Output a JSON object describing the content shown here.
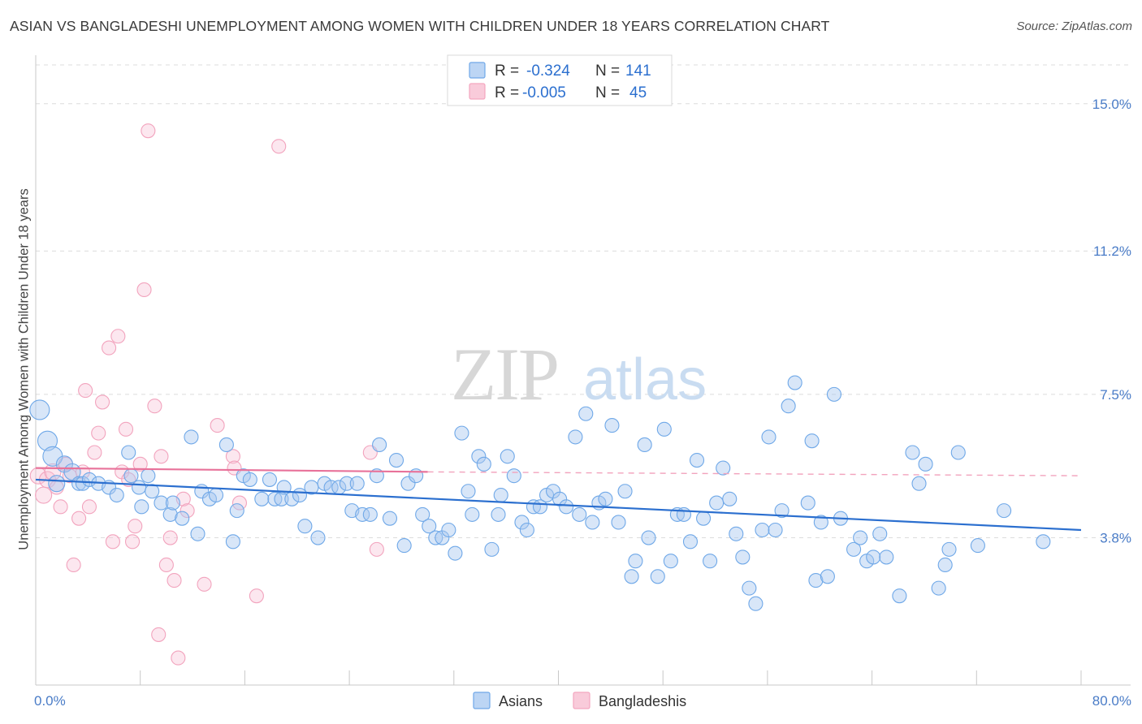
{
  "chart_data": {
    "type": "scatter",
    "title": "ASIAN VS BANGLADESHI UNEMPLOYMENT AMONG WOMEN WITH CHILDREN UNDER 18 YEARS CORRELATION CHART",
    "source": "Source: ZipAtlas.com",
    "ylabel": "Unemployment Among Women with Children Under 18 years",
    "xlabel": "",
    "xlim": [
      0,
      80
    ],
    "ylim": [
      0,
      16
    ],
    "x_tick_labels": [
      "0.0%",
      "80.0%"
    ],
    "y_ticks": [
      3.8,
      7.5,
      11.2,
      15.0
    ],
    "y_tick_labels": [
      "3.8%",
      "7.5%",
      "11.2%",
      "15.0%"
    ],
    "grid": "horizontal dashed",
    "watermark": "ZIPatlas",
    "legend_position": "top-center",
    "colors": {
      "asians": "#6fa8e8",
      "asians_line": "#2b6fcf",
      "bangladeshis": "#f4a6bf",
      "bangladeshis_line": "#e8729a",
      "accent_text": "#2b6fcf"
    },
    "stats": [
      {
        "r_label": "R =",
        "r_value": "-0.324",
        "n_label": "N =",
        "n_value": "141"
      },
      {
        "r_label": "R =",
        "r_value": "-0.005",
        "n_label": "N =",
        "n_value": "45"
      }
    ],
    "series": [
      {
        "name": "Asians",
        "trend": {
          "x": [
            0,
            80
          ],
          "y": [
            5.3,
            4.0
          ]
        },
        "points": [
          [
            0.3,
            7.1
          ],
          [
            0.9,
            6.3
          ],
          [
            1.3,
            5.9
          ],
          [
            1.6,
            5.2
          ],
          [
            2.2,
            5.7
          ],
          [
            2.8,
            5.5
          ],
          [
            3.3,
            5.2
          ],
          [
            3.6,
            5.2
          ],
          [
            4.1,
            5.3
          ],
          [
            4.8,
            5.2
          ],
          [
            5.6,
            5.1
          ],
          [
            6.2,
            4.9
          ],
          [
            7.1,
            6.0
          ],
          [
            7.3,
            5.4
          ],
          [
            7.9,
            5.1
          ],
          [
            8.6,
            5.4
          ],
          [
            8.1,
            4.6
          ],
          [
            8.9,
            5.0
          ],
          [
            9.6,
            4.7
          ],
          [
            10.3,
            4.4
          ],
          [
            10.5,
            4.7
          ],
          [
            11.2,
            4.3
          ],
          [
            11.9,
            6.4
          ],
          [
            12.4,
            3.9
          ],
          [
            12.7,
            5.0
          ],
          [
            13.3,
            4.8
          ],
          [
            13.8,
            4.9
          ],
          [
            14.6,
            6.2
          ],
          [
            15.1,
            3.7
          ],
          [
            15.4,
            4.5
          ],
          [
            15.9,
            5.4
          ],
          [
            16.4,
            5.3
          ],
          [
            17.3,
            4.8
          ],
          [
            17.9,
            5.3
          ],
          [
            18.3,
            4.8
          ],
          [
            18.8,
            4.8
          ],
          [
            19.0,
            5.1
          ],
          [
            19.6,
            4.8
          ],
          [
            20.2,
            4.9
          ],
          [
            20.6,
            4.1
          ],
          [
            21.1,
            5.1
          ],
          [
            21.6,
            3.8
          ],
          [
            22.1,
            5.2
          ],
          [
            22.6,
            5.1
          ],
          [
            23.2,
            5.1
          ],
          [
            23.8,
            5.2
          ],
          [
            24.2,
            4.5
          ],
          [
            24.6,
            5.2
          ],
          [
            25.0,
            4.4
          ],
          [
            25.6,
            4.4
          ],
          [
            26.1,
            5.4
          ],
          [
            26.3,
            6.2
          ],
          [
            27.1,
            4.3
          ],
          [
            27.6,
            5.8
          ],
          [
            28.2,
            3.6
          ],
          [
            28.5,
            5.2
          ],
          [
            29.1,
            5.4
          ],
          [
            29.6,
            4.4
          ],
          [
            30.1,
            4.1
          ],
          [
            30.6,
            3.8
          ],
          [
            31.1,
            3.8
          ],
          [
            31.6,
            4.0
          ],
          [
            32.1,
            3.4
          ],
          [
            32.6,
            6.5
          ],
          [
            33.1,
            5.0
          ],
          [
            33.4,
            4.4
          ],
          [
            33.9,
            5.9
          ],
          [
            34.3,
            5.7
          ],
          [
            34.9,
            3.5
          ],
          [
            35.4,
            4.4
          ],
          [
            35.6,
            4.9
          ],
          [
            36.1,
            5.9
          ],
          [
            36.6,
            5.4
          ],
          [
            37.2,
            4.2
          ],
          [
            37.6,
            4.0
          ],
          [
            38.1,
            4.6
          ],
          [
            38.6,
            4.6
          ],
          [
            39.1,
            4.9
          ],
          [
            39.6,
            5.0
          ],
          [
            40.1,
            4.8
          ],
          [
            40.6,
            4.6
          ],
          [
            41.3,
            6.4
          ],
          [
            41.6,
            4.4
          ],
          [
            42.1,
            7.0
          ],
          [
            42.6,
            4.2
          ],
          [
            43.1,
            4.7
          ],
          [
            43.6,
            4.8
          ],
          [
            44.1,
            6.7
          ],
          [
            44.6,
            4.2
          ],
          [
            45.1,
            5.0
          ],
          [
            45.6,
            2.8
          ],
          [
            45.9,
            3.2
          ],
          [
            46.6,
            6.2
          ],
          [
            46.9,
            3.8
          ],
          [
            47.6,
            2.8
          ],
          [
            48.1,
            6.6
          ],
          [
            48.6,
            3.2
          ],
          [
            49.1,
            4.4
          ],
          [
            49.6,
            4.4
          ],
          [
            50.1,
            3.7
          ],
          [
            50.6,
            5.8
          ],
          [
            51.1,
            4.3
          ],
          [
            51.6,
            3.2
          ],
          [
            52.1,
            4.7
          ],
          [
            52.6,
            5.6
          ],
          [
            53.1,
            4.8
          ],
          [
            53.6,
            3.9
          ],
          [
            54.1,
            3.3
          ],
          [
            54.6,
            2.5
          ],
          [
            55.1,
            2.1
          ],
          [
            55.6,
            4.0
          ],
          [
            56.1,
            6.4
          ],
          [
            56.6,
            4.0
          ],
          [
            57.1,
            4.5
          ],
          [
            57.6,
            7.2
          ],
          [
            58.1,
            7.8
          ],
          [
            59.1,
            4.7
          ],
          [
            59.4,
            6.3
          ],
          [
            59.7,
            2.7
          ],
          [
            60.1,
            4.2
          ],
          [
            60.6,
            2.8
          ],
          [
            61.1,
            7.5
          ],
          [
            61.6,
            4.3
          ],
          [
            62.6,
            3.5
          ],
          [
            63.1,
            3.8
          ],
          [
            63.6,
            3.2
          ],
          [
            64.1,
            3.3
          ],
          [
            64.6,
            3.9
          ],
          [
            65.1,
            3.3
          ],
          [
            66.1,
            2.3
          ],
          [
            67.1,
            6.0
          ],
          [
            67.6,
            5.2
          ],
          [
            68.1,
            5.7
          ],
          [
            69.1,
            2.5
          ],
          [
            69.6,
            3.1
          ],
          [
            69.9,
            3.5
          ],
          [
            70.6,
            6.0
          ],
          [
            72.1,
            3.6
          ],
          [
            74.1,
            4.5
          ],
          [
            77.1,
            3.7
          ]
        ]
      },
      {
        "name": "Bangladeshis",
        "trend": {
          "x": [
            0,
            30
          ],
          "y": [
            5.6,
            5.5
          ]
        },
        "trend_dashed": {
          "x": [
            30,
            80
          ],
          "y": [
            5.5,
            5.4
          ]
        },
        "points": [
          [
            0.2,
            5.4
          ],
          [
            0.6,
            4.9
          ],
          [
            0.9,
            5.3
          ],
          [
            1.3,
            5.5
          ],
          [
            1.6,
            5.1
          ],
          [
            1.9,
            4.6
          ],
          [
            2.3,
            5.7
          ],
          [
            2.6,
            5.4
          ],
          [
            2.9,
            3.1
          ],
          [
            3.3,
            4.3
          ],
          [
            3.6,
            5.5
          ],
          [
            3.8,
            7.6
          ],
          [
            4.1,
            4.6
          ],
          [
            4.5,
            6.0
          ],
          [
            4.8,
            6.5
          ],
          [
            5.1,
            7.3
          ],
          [
            5.6,
            8.7
          ],
          [
            5.9,
            3.7
          ],
          [
            6.3,
            9.0
          ],
          [
            6.6,
            5.5
          ],
          [
            6.9,
            6.6
          ],
          [
            7.1,
            5.3
          ],
          [
            7.4,
            3.7
          ],
          [
            7.6,
            4.1
          ],
          [
            8.0,
            5.7
          ],
          [
            8.3,
            10.2
          ],
          [
            8.6,
            14.3
          ],
          [
            9.1,
            7.2
          ],
          [
            9.4,
            1.3
          ],
          [
            9.6,
            5.9
          ],
          [
            10.0,
            3.1
          ],
          [
            10.3,
            3.8
          ],
          [
            10.6,
            2.7
          ],
          [
            10.9,
            0.7
          ],
          [
            11.3,
            4.8
          ],
          [
            11.6,
            4.5
          ],
          [
            12.9,
            2.6
          ],
          [
            13.9,
            6.7
          ],
          [
            15.1,
            5.9
          ],
          [
            15.2,
            5.6
          ],
          [
            15.6,
            4.7
          ],
          [
            16.9,
            2.3
          ],
          [
            18.6,
            13.9
          ],
          [
            25.6,
            6.0
          ],
          [
            26.1,
            3.5
          ]
        ]
      }
    ]
  },
  "legend": {
    "items": [
      "Asians",
      "Bangladeshis"
    ]
  }
}
